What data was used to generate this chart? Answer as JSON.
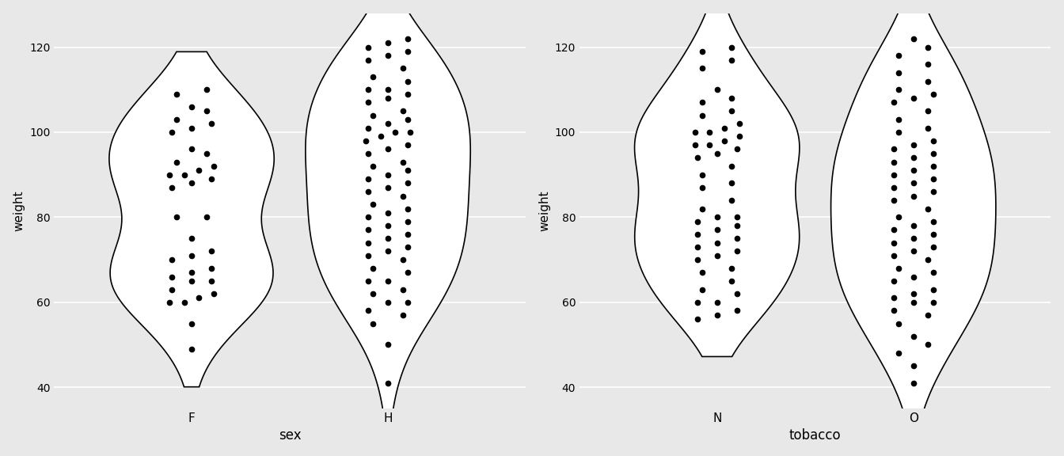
{
  "background_color": "#e8e8e8",
  "plot_bg_color": "#e8e8e8",
  "grid_color": "#ffffff",
  "ylabel": "weight",
  "xlabel_left": "sex",
  "xlabel_right": "tobacco",
  "yticks": [
    40,
    60,
    80,
    100,
    120
  ],
  "ylim": [
    35,
    128
  ],
  "F_data": [
    49,
    55,
    60,
    60,
    61,
    62,
    63,
    65,
    65,
    66,
    67,
    68,
    70,
    71,
    72,
    75,
    80,
    80,
    87,
    88,
    89,
    90,
    90,
    91,
    92,
    93,
    95,
    96,
    100,
    101,
    102,
    103,
    105,
    106,
    109,
    110
  ],
  "H_data": [
    41,
    50,
    55,
    57,
    58,
    60,
    60,
    62,
    63,
    65,
    65,
    67,
    68,
    70,
    71,
    72,
    73,
    74,
    75,
    76,
    77,
    78,
    79,
    80,
    81,
    82,
    83,
    85,
    86,
    87,
    88,
    89,
    90,
    91,
    92,
    93,
    95,
    96,
    97,
    98,
    99,
    100,
    100,
    101,
    102,
    103,
    104,
    105,
    107,
    108,
    109,
    110,
    110,
    112,
    113,
    115,
    117,
    118,
    119,
    120,
    121,
    122
  ],
  "N_data": [
    56,
    57,
    58,
    60,
    60,
    62,
    63,
    65,
    67,
    68,
    70,
    71,
    72,
    73,
    74,
    75,
    76,
    77,
    78,
    79,
    80,
    80,
    82,
    84,
    87,
    88,
    90,
    92,
    94,
    95,
    96,
    97,
    97,
    98,
    99,
    100,
    100,
    101,
    102,
    104,
    105,
    107,
    108,
    110,
    115,
    117,
    119,
    120
  ],
  "O_data": [
    41,
    45,
    48,
    50,
    52,
    55,
    57,
    58,
    60,
    60,
    61,
    62,
    63,
    65,
    66,
    67,
    68,
    70,
    71,
    72,
    73,
    74,
    75,
    76,
    77,
    78,
    79,
    80,
    82,
    84,
    85,
    86,
    87,
    88,
    89,
    90,
    91,
    92,
    93,
    94,
    95,
    96,
    97,
    98,
    100,
    101,
    103,
    105,
    107,
    108,
    109,
    110,
    112,
    114,
    116,
    118,
    120,
    122
  ],
  "dot_color": "#000000",
  "dot_size": 4.5,
  "violin_color": "#ffffff",
  "violin_edgecolor": "#000000",
  "violin_linewidth": 1.2
}
